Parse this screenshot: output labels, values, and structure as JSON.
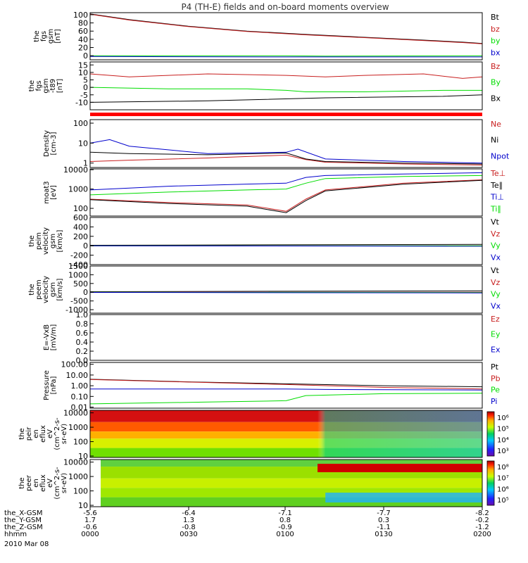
{
  "title": "P4 (TH-E) fields and on-board moments overview",
  "chart_data": {
    "type": "line",
    "title": "P4 (TH-E) fields and on-board moments overview",
    "date": "2010 Mar 08",
    "x_ticks": [
      "0000",
      "0030",
      "0100",
      "0130",
      "0200"
    ],
    "ephemeris": [
      {
        "label": "the_X-GSM",
        "values": [
          "-5.6",
          "-6.4",
          "-7.1",
          "-7.7",
          "-8.2"
        ]
      },
      {
        "label": "the_Y-GSM",
        "values": [
          "1.7",
          "1.3",
          "0.8",
          "0.3",
          "-0.2"
        ]
      },
      {
        "label": "the_Z-GSM",
        "values": [
          "-0.6",
          "-0.8",
          "-0.9",
          "-1.1",
          "-1.2"
        ]
      },
      {
        "label": "hhmm",
        "values": [
          "0000",
          "0030",
          "0100",
          "0130",
          "0200"
        ]
      }
    ],
    "panels": [
      {
        "ylabel": [
          "the",
          "fgs",
          "gsm",
          "[nT]"
        ],
        "scale": "linear",
        "ylim": [
          -10,
          105
        ],
        "yticks": [
          "0",
          "20",
          "40",
          "60",
          "80",
          "100"
        ],
        "legend": [
          "Bt",
          "bz",
          "by",
          "bx"
        ],
        "series": [
          {
            "name": "Bt",
            "color": "#000000",
            "t": [
              0,
              0.1,
              0.25,
              0.4,
              0.55,
              0.7,
              0.85,
              0.95,
              1
            ],
            "v": [
              102,
              88,
              72,
              60,
              52,
              45,
              38,
              33,
              30
            ]
          },
          {
            "name": "bz",
            "color": "#c81e1e",
            "t": [
              0,
              0.1,
              0.25,
              0.4,
              0.55,
              0.7,
              0.85,
              0.95,
              1
            ],
            "v": [
              101,
              87,
              71,
              59,
              51,
              44,
              37,
              32,
              29
            ]
          },
          {
            "name": "by",
            "color": "#00dd00",
            "t": [
              0,
              0.5,
              0.6,
              1
            ],
            "v": [
              0,
              0,
              -1,
              0
            ]
          },
          {
            "name": "bx",
            "color": "#0000cc",
            "t": [
              0,
              0.5,
              0.55,
              0.9,
              1
            ],
            "v": [
              -2,
              -3,
              -3,
              -3,
              -3
            ]
          }
        ]
      },
      {
        "ylabel": [
          "the",
          "fgs",
          "gsm",
          "-t89",
          "[nT]"
        ],
        "scale": "linear",
        "ylim": [
          -15,
          17
        ],
        "yticks": [
          "-10",
          "-5",
          "0",
          "5",
          "10",
          "15"
        ],
        "legend": [
          "Bz",
          "By",
          "Bx"
        ],
        "series": [
          {
            "name": "Bz",
            "color": "#c81e1e",
            "t": [
              0,
              0.1,
              0.3,
              0.5,
              0.6,
              0.7,
              0.85,
              0.95,
              1
            ],
            "v": [
              9,
              7,
              9,
              8,
              7,
              8,
              9,
              6,
              7
            ]
          },
          {
            "name": "By",
            "color": "#00dd00",
            "t": [
              0,
              0.2,
              0.4,
              0.5,
              0.55,
              0.7,
              0.9,
              1
            ],
            "v": [
              0,
              -1,
              -1,
              -2,
              -3,
              -3,
              -2,
              -2
            ]
          },
          {
            "name": "Bx",
            "color": "#000000",
            "t": [
              0,
              0.3,
              0.6,
              0.9,
              1
            ],
            "v": [
              -10,
              -9,
              -7,
              -6,
              -5
            ]
          }
        ]
      },
      {
        "ylabel": [
          "Density",
          "[cm-3]"
        ],
        "scale": "log",
        "ylim": [
          0.6,
          150
        ],
        "yticks": [
          "1",
          "10",
          "100"
        ],
        "legend": [
          "Ne",
          "Ni",
          "Npot"
        ],
        "series": [
          {
            "name": "Ne",
            "color": "#c81e1e",
            "t": [
              0,
              0.1,
              0.3,
              0.5,
              0.55,
              0.6,
              0.8,
              1
            ],
            "v": [
              1.2,
              1.4,
              1.8,
              2.5,
              1.5,
              1.1,
              0.9,
              0.8
            ]
          },
          {
            "name": "Ni",
            "color": "#000000",
            "t": [
              0,
              0.1,
              0.3,
              0.5,
              0.55,
              0.6,
              0.8,
              1
            ],
            "v": [
              3.5,
              3,
              2.6,
              3.2,
              1.6,
              1.2,
              1,
              0.9
            ]
          },
          {
            "name": "Npot",
            "color": "#0000cc",
            "t": [
              0,
              0.05,
              0.1,
              0.3,
              0.5,
              0.53,
              0.6,
              0.8,
              1
            ],
            "v": [
              10,
              15,
              7,
              3,
              3.5,
              5,
              1.6,
              1.2,
              1
            ]
          }
        ]
      },
      {
        "ylabel": [
          "moat3",
          "[eV]"
        ],
        "scale": "log",
        "ylim": [
          40,
          11000
        ],
        "yticks": [
          "100",
          "1000",
          "10000"
        ],
        "legend": [
          "Te⊥",
          "Te∥",
          "Ti⊥",
          "Ti∥"
        ],
        "series": [
          {
            "name": "Te⊥",
            "color": "#c81e1e",
            "t": [
              0,
              0.2,
              0.4,
              0.5,
              0.55,
              0.6,
              0.8,
              1
            ],
            "v": [
              300,
              200,
              150,
              70,
              300,
              900,
              2000,
              3000
            ]
          },
          {
            "name": "Te∥",
            "color": "#000000",
            "t": [
              0,
              0.2,
              0.4,
              0.5,
              0.55,
              0.6,
              0.8,
              1
            ],
            "v": [
              280,
              180,
              130,
              60,
              250,
              800,
              1800,
              2800
            ]
          },
          {
            "name": "Ti⊥",
            "color": "#0000cc",
            "t": [
              0,
              0.2,
              0.4,
              0.5,
              0.55,
              0.6,
              0.8,
              1
            ],
            "v": [
              900,
              1400,
              1800,
              2000,
              4000,
              5000,
              6000,
              7000
            ]
          },
          {
            "name": "Ti∥",
            "color": "#00dd00",
            "t": [
              0,
              0.2,
              0.4,
              0.5,
              0.55,
              0.6,
              0.8,
              1
            ],
            "v": [
              500,
              700,
              900,
              1000,
              2000,
              3500,
              4500,
              5000
            ]
          }
        ]
      },
      {
        "ylabel": [
          "the",
          "peim",
          "velocity",
          "gsm",
          "[km/s]"
        ],
        "scale": "linear",
        "ylim": [
          -400,
          600
        ],
        "yticks": [
          "-400",
          "-200",
          "0",
          "200",
          "400",
          "600"
        ],
        "legend": [
          "Vt",
          "Vz",
          "Vy",
          "Vx"
        ],
        "series": [
          {
            "name": "Vt",
            "color": "#000000",
            "t": [
              0,
              1
            ],
            "v": [
              10,
              30
            ]
          },
          {
            "name": "Vz",
            "color": "#c81e1e",
            "t": [
              0,
              1
            ],
            "v": [
              0,
              0
            ]
          },
          {
            "name": "Vy",
            "color": "#00dd00",
            "t": [
              0,
              1
            ],
            "v": [
              0,
              0
            ]
          },
          {
            "name": "Vx",
            "color": "#0000cc",
            "t": [
              0,
              1
            ],
            "v": [
              0,
              -10
            ]
          }
        ]
      },
      {
        "ylabel": [
          "the",
          "peem",
          "velocity",
          "gsm",
          "[km/s]"
        ],
        "scale": "linear",
        "ylim": [
          -1200,
          1500
        ],
        "yticks": [
          "-1000",
          "-500",
          "0",
          "500",
          "1000",
          "1500"
        ],
        "legend": [
          "Vt",
          "Vz",
          "Vy",
          "Vx"
        ],
        "series": [
          {
            "name": "Vt",
            "color": "#000000",
            "t": [
              0,
              1
            ],
            "v": [
              30,
              80
            ]
          },
          {
            "name": "Vz",
            "color": "#c81e1e",
            "t": [
              0,
              1
            ],
            "v": [
              0,
              0
            ]
          },
          {
            "name": "Vy",
            "color": "#00dd00",
            "t": [
              0,
              1
            ],
            "v": [
              0,
              -20
            ]
          },
          {
            "name": "Vx",
            "color": "#0000cc",
            "t": [
              0,
              1
            ],
            "v": [
              -10,
              -40
            ]
          }
        ]
      },
      {
        "ylabel": [
          "E=-VxB",
          "[mV/m]"
        ],
        "scale": "linear",
        "ylim": [
          0,
          1
        ],
        "yticks": [
          "0.0",
          "0.2",
          "0.4",
          "0.6",
          "0.8",
          "1.0"
        ],
        "legend": [
          "Ez",
          "Ey",
          "Ex"
        ],
        "series": []
      },
      {
        "ylabel": [
          "Pressure",
          "[nPa]"
        ],
        "scale": "log",
        "ylim": [
          0.008,
          150
        ],
        "yticks": [
          "0.01",
          "0.10",
          "1.00",
          "10.00",
          "100.00"
        ],
        "legend": [
          "Pt",
          "Pb",
          "Pe",
          "Pi"
        ],
        "series": [
          {
            "name": "Pt",
            "color": "#000000",
            "t": [
              0,
              0.25,
              0.5,
              0.75,
              1
            ],
            "v": [
              4,
              2.3,
              1.5,
              1,
              0.8
            ]
          },
          {
            "name": "Pb",
            "color": "#c81e1e",
            "t": [
              0,
              0.25,
              0.5,
              0.75,
              1
            ],
            "v": [
              3.8,
              2.2,
              1.3,
              0.7,
              0.5
            ]
          },
          {
            "name": "Pe",
            "color": "#00dd00",
            "t": [
              0,
              0.3,
              0.5,
              0.55,
              0.75,
              1
            ],
            "v": [
              0.02,
              0.03,
              0.04,
              0.12,
              0.18,
              0.2
            ]
          },
          {
            "name": "Pi",
            "color": "#0000cc",
            "t": [
              0,
              0.5,
              0.6,
              1
            ],
            "v": [
              0.5,
              0.5,
              0.45,
              0.4
            ]
          }
        ]
      },
      {
        "ylabel": [
          "the",
          "peir",
          "en",
          "eflux",
          "eV",
          "(cm^2-s-",
          "sr-eV)"
        ],
        "scale": "log",
        "ylim": [
          8,
          15000
        ],
        "kind": "spectrogram",
        "yticks": [
          "10",
          "100",
          "1000",
          "10000"
        ],
        "colorbar": [
          "10³",
          "10⁴",
          "10⁵",
          "10⁶"
        ]
      },
      {
        "ylabel": [
          "the",
          "peer",
          "en",
          "eflux",
          "eV",
          "(cm^2-s-",
          "sr-eV)"
        ],
        "scale": "log",
        "ylim": [
          8,
          15000
        ],
        "kind": "spectrogram",
        "yticks": [
          "10",
          "100",
          "1000",
          "10000"
        ],
        "colorbar": [
          "10⁵",
          "10⁶",
          "10⁷",
          "10⁸"
        ]
      }
    ]
  }
}
